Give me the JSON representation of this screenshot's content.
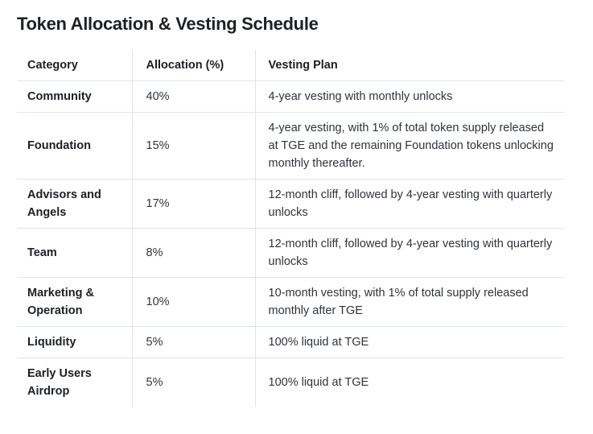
{
  "page": {
    "title": "Token Allocation & Vesting Schedule"
  },
  "colors": {
    "background": "#ffffff",
    "title_text": "#1d2126",
    "bold_text": "#1b2026",
    "body_text": "#2e343b",
    "row_border": "#dfe3e8",
    "column_border": "#e0e4e9"
  },
  "table": {
    "columns": [
      {
        "label": "Category"
      },
      {
        "label": "Allocation (%)"
      },
      {
        "label": "Vesting Plan"
      }
    ],
    "rows": [
      {
        "category": "Community",
        "allocation": "40%",
        "vesting": "4-year vesting with monthly unlocks"
      },
      {
        "category": "Foundation",
        "allocation": "15%",
        "vesting": "4-year vesting, with 1% of total token supply released at TGE and the remaining Foundation tokens unlocking monthly thereafter."
      },
      {
        "category": "Advisors and Angels",
        "allocation": "17%",
        "vesting": "12-month cliff, followed by 4-year vesting with quarterly unlocks"
      },
      {
        "category": "Team",
        "allocation": "8%",
        "vesting": "12-month cliff, followed by 4-year vesting with quarterly unlocks"
      },
      {
        "category": "Marketing & Operation",
        "allocation": "10%",
        "vesting": "10-month vesting, with 1% of total supply released monthly after TGE"
      },
      {
        "category": "Liquidity",
        "allocation": "5%",
        "vesting": "100% liquid at TGE"
      },
      {
        "category": "Early Users Airdrop",
        "allocation": "5%",
        "vesting": "100% liquid at TGE"
      }
    ]
  }
}
